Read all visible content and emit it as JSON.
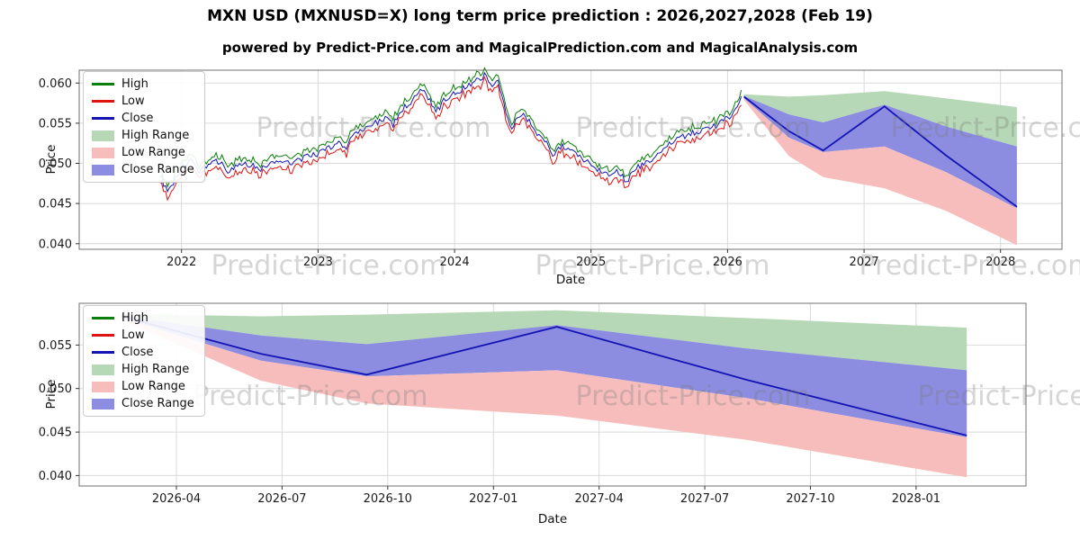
{
  "title": "MXN USD (MXNUSD=X) long term price prediction : 2026,2027,2028 (Feb 19)",
  "subtitle": "powered by Predict-Price.com and MagicalPrediction.com and MagicalAnalysis.com",
  "watermark_text": "Predict-Price.com",
  "colors": {
    "high_line": "#0a7f0a",
    "low_line": "#e01212",
    "close_line": "#1414b4",
    "high_fill": "#b6d8b6",
    "low_fill": "#f7bdbd",
    "close_fill": "#8c8ce0",
    "grid": "#d9d9d9",
    "spine": "#707070",
    "tick": "#333333",
    "text": "#1a1a1a",
    "watermark": "#7d7d7d"
  },
  "legend_items": [
    {
      "label": "High",
      "swatch": "line",
      "color": "#0a7f0a"
    },
    {
      "label": "Low",
      "swatch": "line",
      "color": "#e01212"
    },
    {
      "label": "Close",
      "swatch": "line",
      "color": "#1414b4"
    },
    {
      "label": "High Range",
      "swatch": "patch",
      "color": "#b6d8b6"
    },
    {
      "label": "Low Range",
      "swatch": "patch",
      "color": "#f7bdbd"
    },
    {
      "label": "Close Range",
      "swatch": "patch",
      "color": "#8c8ce0"
    }
  ],
  "top_chart": {
    "x_label": "Date",
    "y_label": "Price",
    "x_range": [
      2021.25,
      2028.45
    ],
    "y_range": [
      0.0393,
      0.0616
    ],
    "x_ticks": [
      {
        "v": 2022,
        "label": "2022"
      },
      {
        "v": 2023,
        "label": "2023"
      },
      {
        "v": 2024,
        "label": "2024"
      },
      {
        "v": 2025,
        "label": "2025"
      },
      {
        "v": 2026,
        "label": "2026"
      },
      {
        "v": 2027,
        "label": "2027"
      },
      {
        "v": 2028,
        "label": "2028"
      }
    ],
    "y_ticks": [
      {
        "v": 0.04,
        "label": "0.040"
      },
      {
        "v": 0.045,
        "label": "0.045"
      },
      {
        "v": 0.05,
        "label": "0.050"
      },
      {
        "v": 0.055,
        "label": "0.055"
      },
      {
        "v": 0.06,
        "label": "0.060"
      }
    ]
  },
  "bottom_chart": {
    "x_label": "Date",
    "y_label": "Price",
    "x_range": [
      2026.02,
      2028.26
    ],
    "y_range": [
      0.0388,
      0.0598
    ],
    "x_ticks": [
      {
        "v": 2026.25,
        "label": "2026-04"
      },
      {
        "v": 2026.5,
        "label": "2026-07"
      },
      {
        "v": 2026.75,
        "label": "2026-10"
      },
      {
        "v": 2027.0,
        "label": "2027-01"
      },
      {
        "v": 2027.25,
        "label": "2027-04"
      },
      {
        "v": 2027.5,
        "label": "2027-07"
      },
      {
        "v": 2027.75,
        "label": "2027-10"
      },
      {
        "v": 2028.0,
        "label": "2028-01"
      }
    ],
    "y_ticks": [
      {
        "v": 0.04,
        "label": "0.040"
      },
      {
        "v": 0.045,
        "label": "0.045"
      },
      {
        "v": 0.05,
        "label": "0.050"
      },
      {
        "v": 0.055,
        "label": "0.055"
      }
    ]
  },
  "chart_data": {
    "type": "line",
    "legend": [
      "High",
      "Low",
      "Close",
      "High Range",
      "Low Range",
      "Close Range"
    ],
    "xlabel": "Date",
    "ylabel": "Price",
    "historical": {
      "noise_amplitude": 0.0004,
      "high_low_spread": 0.0007,
      "x": [
        2021.84,
        2021.9,
        2021.95,
        2022.0,
        2022.06,
        2022.12,
        2022.2,
        2022.28,
        2022.34,
        2022.42,
        2022.5,
        2022.58,
        2022.66,
        2022.74,
        2022.82,
        2022.9,
        2023.0,
        2023.08,
        2023.16,
        2023.2,
        2023.26,
        2023.34,
        2023.42,
        2023.5,
        2023.55,
        2023.62,
        2023.7,
        2023.76,
        2023.82,
        2023.86,
        2023.92,
        2024.0,
        2024.08,
        2024.16,
        2024.22,
        2024.28,
        2024.32,
        2024.38,
        2024.42,
        2024.48,
        2024.54,
        2024.6,
        2024.66,
        2024.72,
        2024.78,
        2024.84,
        2024.9,
        2024.96,
        2025.02,
        2025.08,
        2025.14,
        2025.2,
        2025.26,
        2025.32,
        2025.38,
        2025.44,
        2025.5,
        2025.56,
        2025.62,
        2025.68,
        2025.74,
        2025.8,
        2025.86,
        2025.92,
        2025.98,
        2026.04,
        2026.1
      ],
      "close": [
        0.0487,
        0.0462,
        0.048,
        0.0494,
        0.0503,
        0.0491,
        0.0499,
        0.0503,
        0.049,
        0.0497,
        0.0499,
        0.0493,
        0.05,
        0.0504,
        0.0501,
        0.0507,
        0.0512,
        0.0519,
        0.0527,
        0.0518,
        0.0536,
        0.0542,
        0.0551,
        0.0556,
        0.0548,
        0.0568,
        0.0579,
        0.0591,
        0.058,
        0.0562,
        0.0578,
        0.0588,
        0.0595,
        0.0604,
        0.061,
        0.0598,
        0.0602,
        0.056,
        0.0546,
        0.0562,
        0.0555,
        0.0538,
        0.0528,
        0.0512,
        0.0522,
        0.0515,
        0.0511,
        0.0504,
        0.0496,
        0.0491,
        0.0487,
        0.049,
        0.0478,
        0.0493,
        0.0499,
        0.0504,
        0.0512,
        0.0521,
        0.0529,
        0.0534,
        0.0537,
        0.054,
        0.0543,
        0.0548,
        0.0554,
        0.0563,
        0.0582
      ]
    },
    "prediction": {
      "x": [
        2026.12,
        2026.45,
        2026.7,
        2027.15,
        2027.6,
        2028.12
      ],
      "close": [
        0.0583,
        0.054,
        0.0516,
        0.0571,
        0.051,
        0.0446
      ],
      "high_band_top": [
        0.0586,
        0.0583,
        0.0585,
        0.059,
        0.0581,
        0.057
      ],
      "close_band_top": [
        0.0584,
        0.0561,
        0.0551,
        0.0573,
        0.0546,
        0.0521
      ],
      "close_band_bottom": [
        0.0581,
        0.0532,
        0.0514,
        0.0521,
        0.0489,
        0.0444
      ],
      "low_band_bottom": [
        0.0579,
        0.0509,
        0.0483,
        0.0469,
        0.0441,
        0.0398
      ]
    }
  }
}
